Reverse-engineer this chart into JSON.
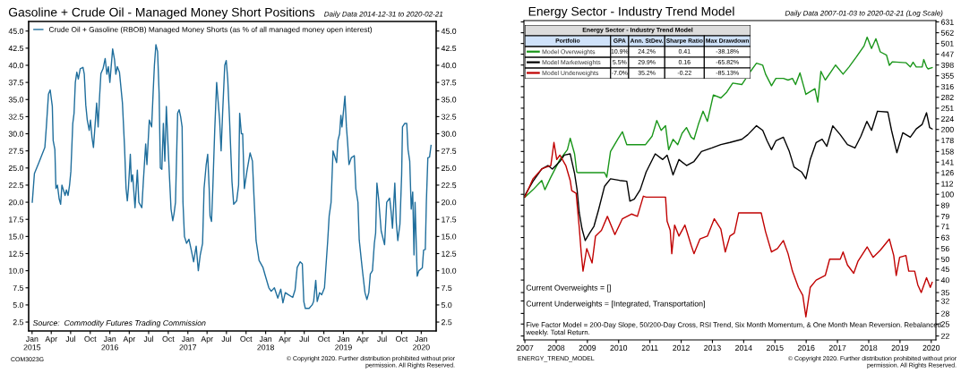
{
  "chart_data": [
    {
      "type": "line",
      "title": "Gasoline + Crude Oil - Managed Money Short Positions",
      "subtitle": "Daily Data 2014-12-31 to 2020-02-21",
      "xlim": [
        "2014-12-16",
        "2020-03-11"
      ],
      "xticks": [
        {
          "value": "2015-01-01",
          "label": "Jan\n2015"
        },
        {
          "value": "2015-04-01",
          "label": "Apr"
        },
        {
          "value": "2015-07-01",
          "label": "Jul"
        },
        {
          "value": "2015-10-01",
          "label": "Oct"
        },
        {
          "value": "2016-01-01",
          "label": "Jan\n2016"
        },
        {
          "value": "2016-04-01",
          "label": "Apr"
        },
        {
          "value": "2016-07-01",
          "label": "Jul"
        },
        {
          "value": "2016-10-01",
          "label": "Oct"
        },
        {
          "value": "2017-01-01",
          "label": "Jan\n2017"
        },
        {
          "value": "2017-04-01",
          "label": "Apr"
        },
        {
          "value": "2017-07-01",
          "label": "Jul"
        },
        {
          "value": "2017-10-01",
          "label": "Oct"
        },
        {
          "value": "2018-01-01",
          "label": "Jan\n2018"
        },
        {
          "value": "2018-04-01",
          "label": "Apr"
        },
        {
          "value": "2018-07-01",
          "label": "Jul"
        },
        {
          "value": "2018-10-01",
          "label": "Oct"
        },
        {
          "value": "2019-01-01",
          "label": "Jan\n2019"
        },
        {
          "value": "2019-04-01",
          "label": "Apr"
        },
        {
          "value": "2019-07-01",
          "label": "Jul"
        },
        {
          "value": "2019-10-01",
          "label": "Oct"
        },
        {
          "value": "2020-01-01",
          "label": "Jan\n2020"
        }
      ],
      "ylim": [
        1.2,
        46.4
      ],
      "yticks": [
        2.5,
        {
          "value": 5,
          "label": "5.0"
        },
        7.5,
        {
          "value": 10,
          "label": "10.0"
        },
        12.5,
        {
          "value": 15,
          "label": "15.0"
        },
        17.5,
        {
          "value": 20,
          "label": "20.0"
        },
        22.5,
        {
          "value": 25,
          "label": "25.0"
        },
        27.5,
        {
          "value": 30,
          "label": "30.0"
        },
        32.5,
        {
          "value": 35,
          "label": "35.0"
        },
        37.5,
        {
          "value": 40,
          "label": "40.0"
        },
        42.5,
        {
          "value": 45,
          "label": "45.0"
        }
      ],
      "y2lim": [
        1.2,
        46.4
      ],
      "y2ticks": [
        2.5,
        {
          "value": 5,
          "label": "5.0"
        },
        7.5,
        {
          "value": 10,
          "label": "10.0"
        },
        12.5,
        {
          "value": 15,
          "label": "15.0"
        },
        17.5,
        {
          "value": 20,
          "label": "20.0"
        },
        22.5,
        {
          "value": 25,
          "label": "25.0"
        },
        27.5,
        {
          "value": 30,
          "label": "30.0"
        },
        32.5,
        {
          "value": 35,
          "label": "35.0"
        },
        37.5,
        {
          "value": 40,
          "label": "40.0"
        },
        42.5,
        {
          "value": 45,
          "label": "45.0"
        }
      ],
      "legend": "top left",
      "series": [
        {
          "name": "Crude Oil + Gasoline (RBOB) Managed Money Shorts (as % of all managed money open interest)",
          "color": "#1f6e9c",
          "x": [
            "2015-01-02",
            "2015-01-12",
            "2015-02-02",
            "2015-03-02",
            "2015-03-09",
            "2015-03-19",
            "2015-03-27",
            "2015-04-06",
            "2015-04-10",
            "2015-04-18",
            "2015-04-23",
            "2015-04-30",
            "2015-05-08",
            "2015-05-15",
            "2015-05-21",
            "2015-06-05",
            "2015-06-11",
            "2015-06-19",
            "2015-06-26",
            "2015-07-02",
            "2015-07-11",
            "2015-07-17",
            "2015-07-23",
            "2015-07-30",
            "2015-08-06",
            "2015-08-15",
            "2015-08-28",
            "2015-09-03",
            "2015-09-10",
            "2015-09-17",
            "2015-09-26",
            "2015-10-02",
            "2015-10-09",
            "2015-10-16",
            "2015-10-23",
            "2015-10-31",
            "2015-11-07",
            "2015-11-13",
            "2015-11-20",
            "2015-11-30",
            "2015-12-10",
            "2015-12-18",
            "2015-12-25",
            "2016-01-01",
            "2016-01-14",
            "2016-01-23",
            "2016-01-29",
            "2016-02-05",
            "2016-02-15",
            "2016-02-29",
            "2016-03-10",
            "2016-03-17",
            "2016-03-23",
            "2016-03-28",
            "2016-04-06",
            "2016-04-11",
            "2016-04-17",
            "2016-04-28",
            "2016-05-09",
            "2016-05-16",
            "2016-05-30",
            "2016-06-06",
            "2016-06-17",
            "2016-06-23",
            "2016-07-04",
            "2016-07-15",
            "2016-07-22",
            "2016-07-28",
            "2016-08-04",
            "2016-08-12",
            "2016-08-19",
            "2016-08-25",
            "2016-09-01",
            "2016-09-08",
            "2016-09-15",
            "2016-09-22",
            "2016-09-29",
            "2016-10-07",
            "2016-10-14",
            "2016-10-22",
            "2016-10-28",
            "2016-11-04",
            "2016-11-14",
            "2016-11-21",
            "2016-11-28",
            "2016-12-05",
            "2016-12-09",
            "2016-12-16",
            "2016-12-26",
            "2017-01-06",
            "2017-01-17",
            "2017-01-28",
            "2017-02-09",
            "2017-02-19",
            "2017-02-28",
            "2017-03-11",
            "2017-03-18",
            "2017-03-28",
            "2017-04-04",
            "2017-04-11",
            "2017-04-15",
            "2017-04-22",
            "2017-04-28",
            "2017-05-07",
            "2017-05-16",
            "2017-05-30",
            "2017-06-06",
            "2017-06-13",
            "2017-06-23",
            "2017-06-30",
            "2017-07-07",
            "2017-07-15",
            "2017-07-27",
            "2017-08-04",
            "2017-08-18",
            "2017-08-27",
            "2017-09-01",
            "2017-09-09",
            "2017-09-15",
            "2017-09-23",
            "2017-10-05",
            "2017-10-20",
            "2017-10-31",
            "2017-11-07",
            "2017-11-17",
            "2017-12-01",
            "2017-12-19",
            "2017-12-31",
            "2018-01-16",
            "2018-01-27",
            "2018-02-11",
            "2018-02-27",
            "2018-03-13",
            "2018-03-23",
            "2018-04-03",
            "2018-04-17",
            "2018-05-08",
            "2018-05-19",
            "2018-05-29",
            "2018-06-12",
            "2018-06-22",
            "2018-06-29",
            "2018-07-06",
            "2018-07-24",
            "2018-08-07",
            "2018-08-14",
            "2018-08-24",
            "2018-08-31",
            "2018-09-11",
            "2018-09-21",
            "2018-10-04",
            "2018-10-19",
            "2018-10-26",
            "2018-11-04",
            "2018-11-13",
            "2018-11-30",
            "2018-12-06",
            "2018-12-14",
            "2018-12-20",
            "2018-12-25",
            "2019-01-08",
            "2019-01-15",
            "2019-01-21",
            "2019-01-27",
            "2019-02-07",
            "2019-02-21",
            "2019-02-28",
            "2019-03-10",
            "2019-03-16",
            "2019-03-26",
            "2019-04-02",
            "2019-04-12",
            "2019-04-21",
            "2019-04-30",
            "2019-05-07",
            "2019-05-17",
            "2019-05-26",
            "2019-06-01",
            "2019-06-07",
            "2019-06-15",
            "2019-06-27",
            "2019-07-13",
            "2019-07-23",
            "2019-08-06",
            "2019-08-13",
            "2019-08-19",
            "2019-08-30",
            "2019-09-06",
            "2019-09-13",
            "2019-09-23",
            "2019-10-01",
            "2019-10-05",
            "2019-10-15",
            "2019-10-25",
            "2019-10-31",
            "2019-11-08",
            "2019-11-15",
            "2019-11-22",
            "2019-11-28",
            "2019-12-03",
            "2019-12-13",
            "2019-12-21",
            "2020-01-06",
            "2020-01-12",
            "2020-01-20",
            "2020-01-25",
            "2020-02-01",
            "2020-02-09",
            "2020-02-16"
          ],
          "values": [
            20.0,
            24.2,
            25.8,
            28.0,
            31.0,
            35.8,
            36.4,
            34.0,
            29.0,
            27.7,
            22.0,
            22.5,
            20.5,
            19.7,
            22.5,
            21.0,
            21.8,
            21.0,
            22.5,
            24.5,
            31.5,
            33.0,
            37.5,
            39.0,
            38.0,
            39.5,
            39.7,
            38.7,
            34.2,
            32.0,
            30.5,
            32.0,
            29.5,
            28.0,
            31.0,
            34.5,
            31.0,
            35.0,
            38.8,
            39.5,
            41.0,
            38.7,
            39.8,
            37.5,
            42.4,
            40.8,
            38.7,
            39.8,
            39.0,
            34.5,
            28.0,
            22.0,
            20.2,
            22.0,
            27.0,
            23.0,
            24.0,
            19.2,
            24.7,
            20.0,
            19.2,
            23.0,
            28.5,
            25.5,
            32.0,
            31.0,
            36.0,
            40.0,
            43.0,
            42.0,
            36.0,
            25.0,
            24.8,
            31.5,
            26.0,
            34.0,
            29.0,
            23.5,
            19.0,
            17.3,
            18.3,
            20.0,
            33.0,
            33.5,
            32.5,
            31.0,
            20.0,
            15.0,
            14.0,
            14.6,
            13.0,
            11.3,
            13.6,
            10.0,
            12.3,
            14.0,
            22.0,
            25.5,
            27.0,
            22.0,
            18.0,
            17.2,
            22.0,
            30.5,
            37.5,
            32.0,
            27.5,
            33.0,
            40.0,
            40.7,
            38.0,
            32.5,
            23.0,
            19.7,
            20.2,
            22.5,
            33.0,
            30.0,
            30.0,
            22.0,
            24.5,
            27.2,
            26.0,
            21.0,
            14.4,
            11.5,
            10.5,
            9.2,
            7.5,
            7.0,
            7.5,
            6.0,
            7.3,
            5.3,
            6.8,
            6.5,
            6.1,
            7.2,
            10.5,
            11.3,
            11.0,
            5.5,
            4.5,
            4.5,
            5.0,
            5.5,
            8.6,
            5.5,
            6.8,
            6.5,
            7.5,
            14.3,
            18.0,
            20.0,
            27.5,
            25.8,
            29.0,
            30.0,
            32.7,
            31.0,
            35.5,
            31.0,
            28.5,
            25.5,
            26.5,
            26.8,
            22.0,
            20.0,
            14.5,
            11.5,
            9.5,
            6.8,
            5.8,
            6.8,
            9.5,
            10.0,
            14.0,
            15.5,
            22.8,
            20.5,
            15.8,
            13.8,
            20.0,
            20.6,
            18.5,
            16.2,
            22.8,
            17.0,
            14.4,
            16.8,
            24.0,
            31.0,
            31.5,
            31.5,
            27.7,
            26.0,
            19.0,
            21.5,
            12.3,
            20.0,
            9.2,
            10.0,
            10.4,
            13.0,
            13.1,
            20.0,
            26.5,
            26.6,
            28.3
          ]
        }
      ],
      "annotations": [
        "Source:  Commodity Futures Trading Commission",
        "COM3023G",
        "© Copyright 2020. Further distribution prohibited without prior\npermission. All Rights Reserved."
      ]
    },
    {
      "type": "line",
      "title": "Energy Sector - Industry Trend Model",
      "subtitle": "Daily Data 2007-01-03 to 2020-02-21 (Log Scale)",
      "log": "y",
      "xlim": [
        2006.97,
        2020.15
      ],
      "xticks": [
        2007,
        2008,
        2009,
        2010,
        2011,
        2012,
        2013,
        2014,
        2015,
        2016,
        2017,
        2018,
        2019,
        2020
      ],
      "ylim": [
        21.1,
        640
      ],
      "legend": "top left",
      "yticks": [
        22,
        25,
        28,
        32,
        35,
        40,
        45,
        50,
        56,
        63,
        71,
        79,
        89,
        100,
        112,
        126,
        141,
        158,
        178,
        200,
        224,
        251,
        282,
        316,
        355,
        398,
        447,
        501,
        562,
        631
      ],
      "series": [
        {
          "name": "Model Overweights",
          "color": "#1a961a",
          "x": [
            2007.0,
            2007.26,
            2007.54,
            2007.64,
            2007.83,
            2008.12,
            2008.36,
            2008.45,
            2008.59,
            2008.66,
            2008.69,
            2009.55,
            2009.62,
            2009.74,
            2009.98,
            2010.12,
            2010.26,
            2010.36,
            2010.5,
            2010.86,
            2011.07,
            2011.22,
            2011.36,
            2011.5,
            2011.6,
            2011.74,
            2011.89,
            2012.03,
            2012.17,
            2012.32,
            2012.41,
            2012.55,
            2012.7,
            2012.84,
            2013.03,
            2013.27,
            2013.46,
            2013.65,
            2013.94,
            2014.22,
            2014.41,
            2014.61,
            2014.7,
            2014.89,
            2015.03,
            2015.27,
            2015.42,
            2015.56,
            2015.66,
            2015.8,
            2015.94,
            2015.99,
            2016.28,
            2016.37,
            2016.47,
            2016.61,
            2016.8,
            2016.94,
            2017.18,
            2017.37,
            2017.61,
            2017.85,
            2017.95,
            2018.09,
            2018.23,
            2018.37,
            2018.57,
            2018.66,
            2018.76,
            2019.19,
            2019.33,
            2019.42,
            2019.52,
            2019.71,
            2019.76,
            2019.85,
            2019.9,
            2020.03
          ],
          "values": [
            97,
            105,
            116,
            105,
            120,
            145,
            161,
            182,
            154,
            127,
            126,
            126,
            120,
            158,
            181,
            195,
            170,
            170,
            170,
            170,
            186,
            220,
            198,
            208,
            161,
            180,
            170,
            192,
            204,
            184,
            180,
            211,
            243,
            218,
            289,
            280,
            298,
            328,
            323,
            372,
            406,
            397,
            361,
            319,
            345,
            345,
            339,
            345,
            323,
            366,
            309,
            291,
            309,
            268,
            372,
            339,
            372,
            398,
            361,
            390,
            435,
            488,
            536,
            475,
            527,
            458,
            442,
            397,
            412,
            408,
            390,
            410,
            390,
            390,
            422,
            390,
            382,
            387
          ]
        },
        {
          "name": "Model Marketweights",
          "color": "#000000",
          "x": [
            2007.0,
            2007.26,
            2007.54,
            2007.74,
            2007.88,
            2008.12,
            2008.26,
            2008.45,
            2008.59,
            2008.67,
            2008.74,
            2008.83,
            2008.93,
            2009.07,
            2009.21,
            2009.36,
            2009.55,
            2009.74,
            2010.03,
            2010.26,
            2010.36,
            2010.5,
            2010.69,
            2010.88,
            2011.17,
            2011.41,
            2011.55,
            2011.74,
            2011.93,
            2012.17,
            2012.41,
            2012.65,
            2012.98,
            2013.27,
            2013.56,
            2013.94,
            2014.13,
            2014.41,
            2014.61,
            2014.75,
            2014.89,
            2015.03,
            2015.27,
            2015.46,
            2015.61,
            2015.85,
            2015.99,
            2016.13,
            2016.32,
            2016.51,
            2016.66,
            2016.85,
            2017.09,
            2017.32,
            2017.56,
            2017.75,
            2017.94,
            2018.09,
            2018.28,
            2018.61,
            2018.73,
            2018.9,
            2019.09,
            2019.33,
            2019.52,
            2019.71,
            2019.85,
            2019.95,
            2020.03
          ],
          "values": [
            99,
            115,
            131,
            136,
            131,
            142,
            152,
            154,
            125,
            105,
            82,
            69,
            61,
            66,
            71,
            85,
            109,
            118,
            116,
            115,
            93,
            95,
            105,
            127,
            154,
            145,
            152,
            123,
            145,
            136,
            142,
            158,
            164,
            170,
            174,
            180,
            189,
            208,
            198,
            177,
            161,
            177,
            184,
            158,
            134,
            127,
            118,
            145,
            174,
            180,
            167,
            208,
            189,
            170,
            164,
            186,
            218,
            198,
            243,
            241,
            198,
            156,
            193,
            184,
            201,
            211,
            239,
            204,
            201
          ]
        },
        {
          "name": "Model Underweights",
          "color": "#c00000",
          "x": [
            2007.0,
            2007.26,
            2007.54,
            2007.64,
            2007.83,
            2007.93,
            2008.02,
            2008.12,
            2008.31,
            2008.45,
            2008.5,
            2008.64,
            2008.74,
            2008.8,
            2008.86,
            2008.98,
            2009.15,
            2009.26,
            2009.45,
            2009.64,
            2009.88,
            2010.12,
            2010.41,
            2010.6,
            2010.79,
            2010.88,
            2011.5,
            2011.55,
            2011.65,
            2011.7,
            2011.79,
            2011.93,
            2012.12,
            2012.32,
            2012.41,
            2012.6,
            2012.84,
            2013.06,
            2013.27,
            2013.41,
            2013.56,
            2013.7,
            2013.84,
            2014.56,
            2014.7,
            2014.89,
            2015.08,
            2015.27,
            2015.42,
            2015.56,
            2015.75,
            2015.89,
            2015.99,
            2016.13,
            2016.32,
            2016.61,
            2016.75,
            2017.09,
            2017.18,
            2017.32,
            2017.52,
            2017.66,
            2017.95,
            2018.14,
            2018.37,
            2018.66,
            2018.8,
            2018.88,
            2018.99,
            2019.19,
            2019.28,
            2019.47,
            2019.57,
            2019.68,
            2019.85,
            2019.97,
            2020.03
          ],
          "values": [
            97,
            118,
            131,
            133,
            136,
            174,
            145,
            152,
            136,
            116,
            104,
            101,
            70,
            54,
            44,
            56,
            48,
            64,
            68,
            79,
            65,
            77,
            81,
            79,
            98,
            97,
            97,
            75,
            68,
            53,
            72,
            64,
            72,
            58,
            53,
            62,
            64,
            77,
            69,
            54,
            64,
            66,
            82,
            82,
            67,
            54,
            56,
            61,
            53,
            44,
            37,
            34,
            27,
            37,
            40,
            42,
            50,
            50,
            54,
            47,
            43,
            49,
            57,
            51,
            55,
            62,
            52,
            42,
            51,
            52,
            44,
            44,
            38,
            35,
            41,
            37,
            39
          ]
        }
      ],
      "annotations": [
        "Current Overweights = []",
        "Current Underweights = [Integrated, Transportation]",
        "Five Factor Model = 200-Day Slope, 50/200-Day Cross, RSI Trend, Six Month Momentum, & One Month Mean Reversion. Rebalanced weekly. Total Return.",
        "ENERGY_TREND_MODEL",
        "© Copyright 2020. Further distribution prohibited without prior\npermission. All Rights Reserved."
      ]
    },
    {
      "type": "other",
      "title": "Energy Sector - Industry Trend Model",
      "categories": [
        "Portfolio",
        "GPA",
        "Ann. StDev.",
        "Sharpe Ratio",
        "Max Drawdown"
      ],
      "cell_labels": [
        [
          "10.9%",
          "24.2%",
          "0.41",
          "-38.18%"
        ],
        [
          "5.5%",
          "29.9%",
          "0.16",
          "-65.82%"
        ],
        [
          "-7.0%",
          "35.2%",
          "-0.22",
          "-85.13%"
        ]
      ]
    }
  ]
}
